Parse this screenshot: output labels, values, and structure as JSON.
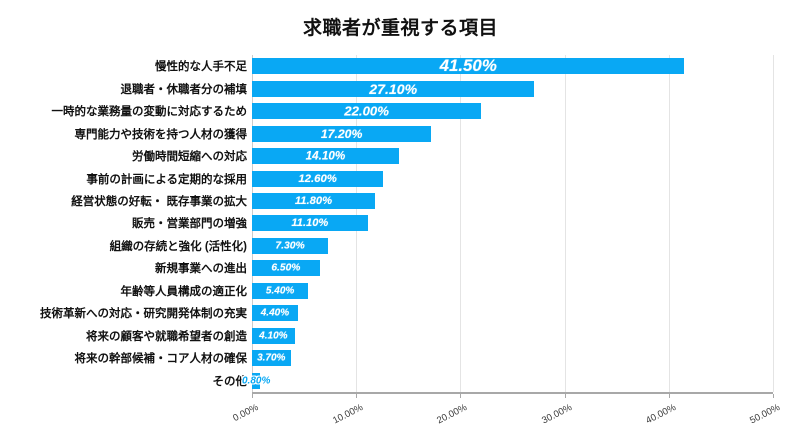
{
  "chart_data": {
    "type": "bar",
    "orientation": "horizontal",
    "title": "求職者が重視する項目",
    "categories": [
      "慢性的な人手不足",
      "退職者・休職者分の補填",
      "一時的な業務量の変動に対応するため",
      "専門能力や技術を持つ人材の獲得",
      "労働時間短縮への対応",
      "事前の計画による定期的な採用",
      "経営状態の好転・ 既存事業の拡大",
      "販売・営業部門の増強",
      "組織の存続と強化 (活性化)",
      "新規事業への進出",
      "年齢等人員構成の適正化",
      "技術革新への対応・研究開発体制の充実",
      "将来の顧客や就職希望者の創造",
      "将来の幹部候補・コア人材の確保",
      "その他"
    ],
    "values": [
      41.5,
      27.1,
      22.0,
      17.2,
      14.1,
      12.6,
      11.8,
      11.1,
      7.3,
      6.5,
      5.4,
      4.4,
      4.1,
      3.7,
      0.8
    ],
    "value_labels": [
      "41.50%",
      "27.10%",
      "22.00%",
      "17.20%",
      "14.10%",
      "12.60%",
      "11.80%",
      "11.10%",
      "7.30%",
      "6.50%",
      "5.40%",
      "4.40%",
      "4.10%",
      "3.70%",
      "0.80%"
    ],
    "xlabel": "",
    "ylabel": "",
    "xlim": [
      0,
      50
    ],
    "x_tick_values": [
      0,
      10,
      20,
      30,
      40,
      50
    ],
    "x_tick_labels": [
      "0.00%",
      "10.00%",
      "20.00%",
      "30.00%",
      "40.00%",
      "50.00%"
    ],
    "grid": true,
    "legend_position": "none",
    "bar_color": "#09A8F4",
    "value_label_color_inside": "#FFFFFF",
    "value_label_color_outside": "#09A8F4",
    "grid_color": "#E4E4E4",
    "axis_color": "#A8A8A8"
  }
}
